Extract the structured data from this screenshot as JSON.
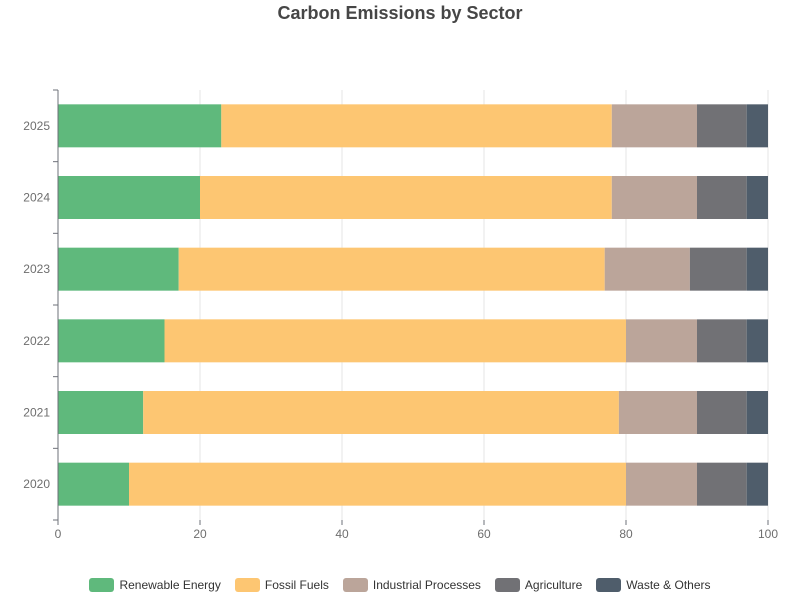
{
  "chart_data": {
    "type": "bar",
    "orientation": "horizontal",
    "stacked": true,
    "title": "Carbon Emissions by Sector",
    "categories": [
      "2020",
      "2021",
      "2022",
      "2023",
      "2024",
      "2025"
    ],
    "series": [
      {
        "name": "Renewable Energy",
        "color": "#5fb97c",
        "values": [
          10,
          12,
          15,
          17,
          20,
          23
        ]
      },
      {
        "name": "Fossil Fuels",
        "color": "#fdc672",
        "values": [
          70,
          67,
          65,
          60,
          58,
          55
        ]
      },
      {
        "name": "Industrial Processes",
        "color": "#bba59a",
        "values": [
          10,
          11,
          10,
          12,
          12,
          12
        ]
      },
      {
        "name": "Agriculture",
        "color": "#717175",
        "values": [
          7,
          7,
          7,
          8,
          7,
          7
        ]
      },
      {
        "name": "Waste & Others",
        "color": "#4f5d6b",
        "values": [
          3,
          3,
          3,
          3,
          3,
          3
        ]
      }
    ],
    "x_ticks": [
      "0",
      "20",
      "40",
      "60",
      "80",
      "100"
    ],
    "xlim": [
      0,
      100
    ],
    "grid": true,
    "legend_position": "bottom"
  }
}
